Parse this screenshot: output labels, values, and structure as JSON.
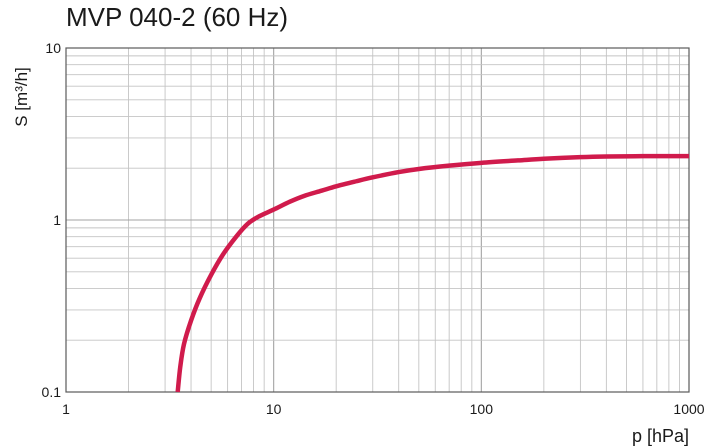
{
  "chart_data": {
    "type": "line",
    "title": "MVP 040-2 (60 Hz)",
    "xlabel": "p  [hPa]",
    "ylabel": "S  [m³/h]",
    "x_scale": "log",
    "y_scale": "log",
    "xlim": [
      1,
      1000
    ],
    "ylim": [
      0.1,
      10
    ],
    "xticks": [
      {
        "value": 1,
        "label": "1"
      },
      {
        "value": 10,
        "label": "10"
      },
      {
        "value": 100,
        "label": "100"
      },
      {
        "value": 1000,
        "label": "1000"
      }
    ],
    "yticks": [
      {
        "value": 0.1,
        "label": "0.1"
      },
      {
        "value": 1,
        "label": "1"
      },
      {
        "value": 10,
        "label": "10"
      }
    ],
    "grid": true,
    "legend": false,
    "series": [
      {
        "color": "#d01b4c",
        "x": [
          3.45,
          3.55,
          3.7,
          4.0,
          4.4,
          5.0,
          5.7,
          6.6,
          7.5,
          8.5,
          10,
          12,
          14,
          17,
          20,
          25,
          30,
          40,
          50,
          70,
          100,
          150,
          200,
          300,
          400,
          600,
          1000
        ],
        "y": [
          0.1,
          0.14,
          0.19,
          0.26,
          0.35,
          0.48,
          0.63,
          0.8,
          0.95,
          1.05,
          1.15,
          1.28,
          1.38,
          1.48,
          1.57,
          1.68,
          1.77,
          1.9,
          1.98,
          2.07,
          2.15,
          2.22,
          2.27,
          2.32,
          2.34,
          2.35,
          2.35
        ]
      }
    ]
  }
}
